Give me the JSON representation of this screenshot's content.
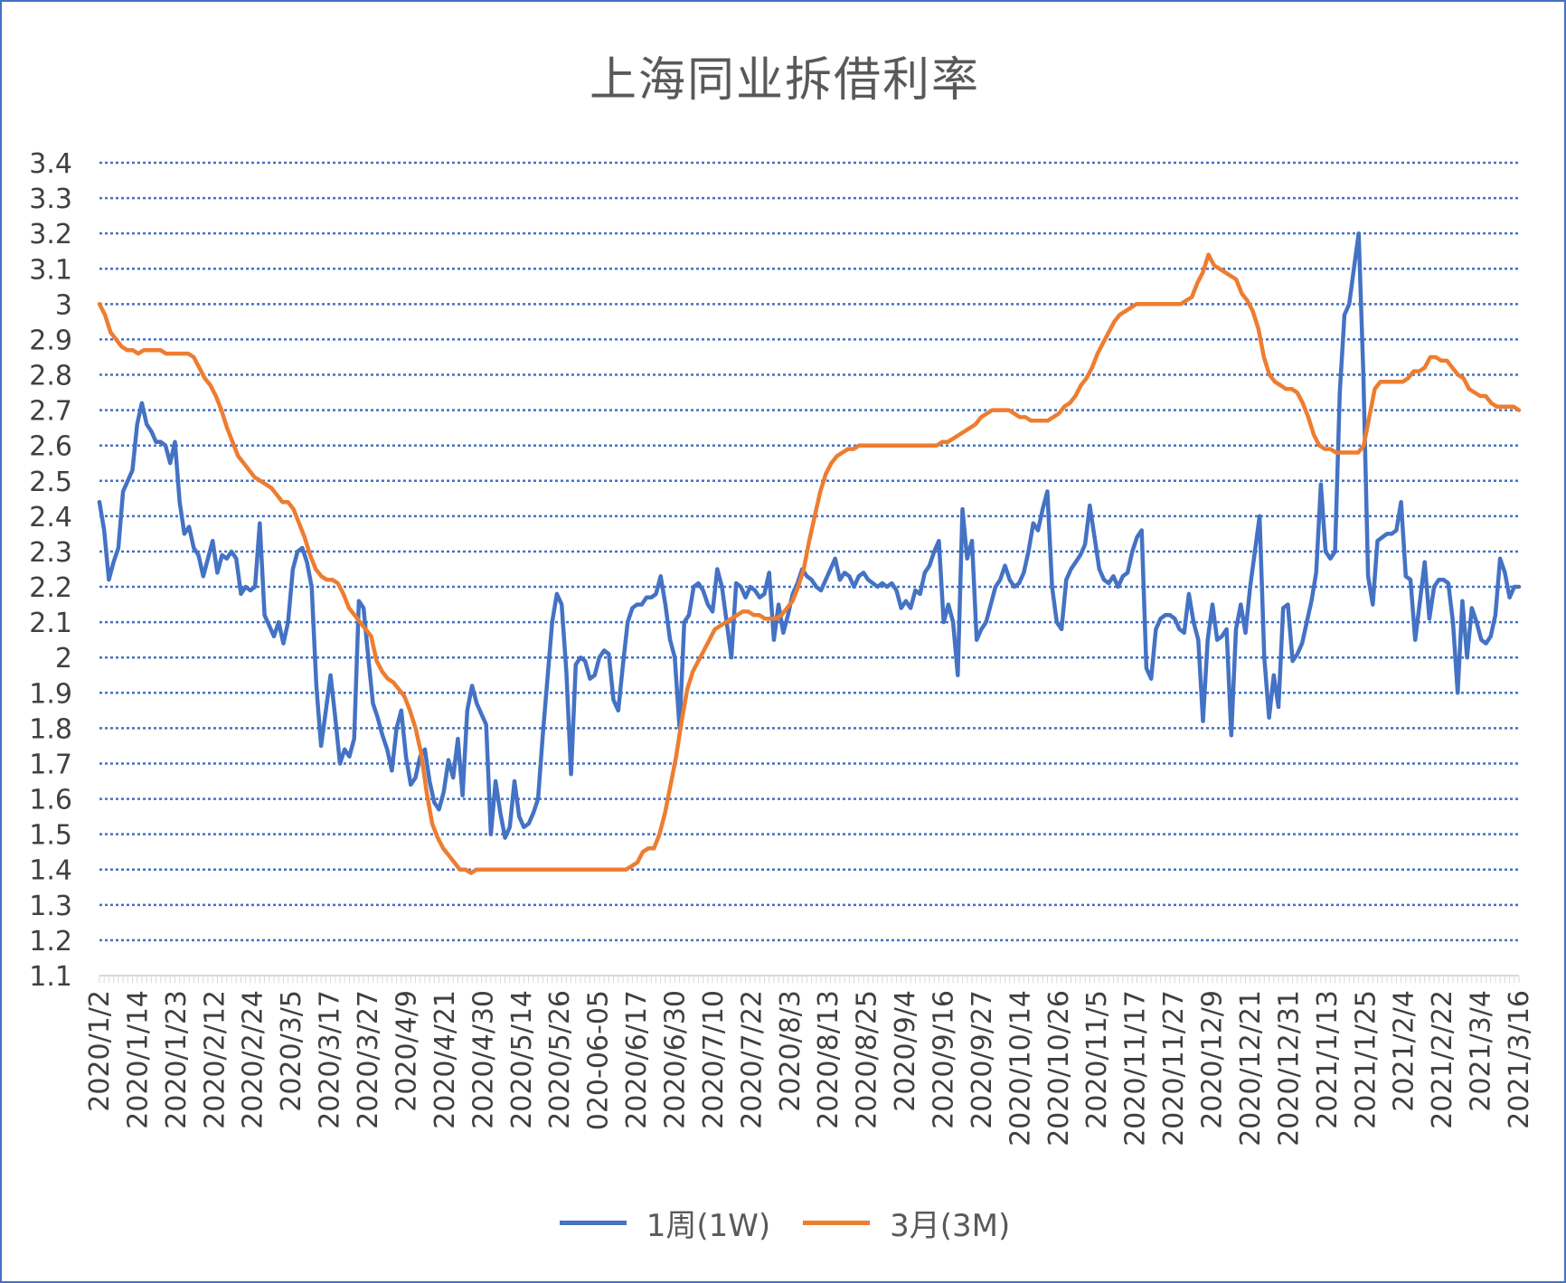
{
  "chart_data": {
    "type": "line",
    "title": "上海同业拆借利率",
    "xlabel": "",
    "ylabel": "",
    "ylim": [
      1.1,
      3.4
    ],
    "ytick_step": 0.1,
    "yticks": [
      "1.1",
      "1.2",
      "1.3",
      "1.4",
      "1.5",
      "1.6",
      "1.7",
      "1.8",
      "1.9",
      "2",
      "2.1",
      "2.2",
      "2.3",
      "2.4",
      "2.5",
      "2.6",
      "2.7",
      "2.8",
      "2.9",
      "3",
      "3.1",
      "3.2",
      "3.3",
      "3.4"
    ],
    "grid": true,
    "grid_color": "#4472c4",
    "legend_position": "bottom",
    "x_tick_labels": [
      "2020/1/2",
      "2020/1/14",
      "2020/1/23",
      "2020/2/12",
      "2020/2/24",
      "2020/3/5",
      "2020/3/17",
      "2020/3/27",
      "2020/4/9",
      "2020/4/21",
      "2020/4/30",
      "2020/5/14",
      "2020/5/26",
      "020-06-05",
      "2020/6/17",
      "2020/6/30",
      "2020/7/10",
      "2020/7/22",
      "2020/8/3",
      "2020/8/13",
      "2020/8/25",
      "2020/9/4",
      "2020/9/16",
      "2020/9/27",
      "2020/10/14",
      "2020/10/26",
      "2020/11/5",
      "2020/11/17",
      "2020/11/27",
      "2020/12/9",
      "2020/12/21",
      "2020/12/31",
      "2021/1/13",
      "2021/1/25",
      "2021/2/4",
      "2021/2/22",
      "2021/3/4",
      "2021/3/16"
    ],
    "series": [
      {
        "name": "1周(1W)",
        "color": "#4472c4",
        "values": [
          2.44,
          2.36,
          2.22,
          2.27,
          2.31,
          2.47,
          2.5,
          2.53,
          2.66,
          2.72,
          2.66,
          2.64,
          2.61,
          2.61,
          2.6,
          2.55,
          2.61,
          2.44,
          2.35,
          2.37,
          2.31,
          2.29,
          2.23,
          2.28,
          2.33,
          2.24,
          2.29,
          2.28,
          2.3,
          2.28,
          2.18,
          2.2,
          2.19,
          2.2,
          2.38,
          2.12,
          2.09,
          2.06,
          2.1,
          2.04,
          2.1,
          2.25,
          2.3,
          2.31,
          2.27,
          2.2,
          1.92,
          1.75,
          1.85,
          1.95,
          1.83,
          1.7,
          1.74,
          1.72,
          1.77,
          2.16,
          2.14,
          2.0,
          1.87,
          1.83,
          1.78,
          1.74,
          1.68,
          1.8,
          1.85,
          1.72,
          1.64,
          1.66,
          1.72,
          1.74,
          1.65,
          1.59,
          1.57,
          1.62,
          1.71,
          1.66,
          1.77,
          1.61,
          1.85,
          1.92,
          1.87,
          1.84,
          1.81,
          1.5,
          1.65,
          1.56,
          1.49,
          1.52,
          1.65,
          1.55,
          1.52,
          1.53,
          1.56,
          1.6,
          1.78,
          1.94,
          2.1,
          2.18,
          2.15,
          1.96,
          1.67,
          1.98,
          2.0,
          1.99,
          1.94,
          1.95,
          2.0,
          2.02,
          2.01,
          1.88,
          1.85,
          1.98,
          2.1,
          2.14,
          2.15,
          2.15,
          2.17,
          2.17,
          2.18,
          2.23,
          2.15,
          2.05,
          2.0,
          1.8,
          2.1,
          2.12,
          2.2,
          2.21,
          2.19,
          2.15,
          2.13,
          2.25,
          2.2,
          2.1,
          2.0,
          2.21,
          2.2,
          2.17,
          2.2,
          2.19,
          2.17,
          2.18,
          2.24,
          2.05,
          2.15,
          2.07,
          2.12,
          2.18,
          2.21,
          2.25,
          2.23,
          2.22,
          2.2,
          2.19,
          2.22,
          2.25,
          2.28,
          2.22,
          2.24,
          2.23,
          2.2,
          2.23,
          2.24,
          2.22,
          2.21,
          2.2,
          2.21,
          2.2,
          2.21,
          2.19,
          2.14,
          2.16,
          2.14,
          2.19,
          2.18,
          2.24,
          2.26,
          2.3,
          2.33,
          2.1,
          2.15,
          2.1,
          1.95,
          2.42,
          2.28,
          2.33,
          2.05,
          2.08,
          2.1,
          2.15,
          2.2,
          2.22,
          2.26,
          2.22,
          2.2,
          2.21,
          2.24,
          2.3,
          2.38,
          2.36,
          2.42,
          2.47,
          2.2,
          2.1,
          2.08,
          2.22,
          2.25,
          2.27,
          2.29,
          2.32,
          2.43,
          2.34,
          2.25,
          2.22,
          2.21,
          2.23,
          2.2,
          2.23,
          2.24,
          2.3,
          2.34,
          2.36,
          1.97,
          1.94,
          2.08,
          2.11,
          2.12,
          2.12,
          2.11,
          2.08,
          2.07,
          2.18,
          2.1,
          2.05,
          1.82,
          2.05,
          2.15,
          2.05,
          2.06,
          2.08,
          1.78,
          2.08,
          2.15,
          2.07,
          2.2,
          2.3,
          2.4,
          2.0,
          1.83,
          1.95,
          1.86,
          2.14,
          2.15,
          1.99,
          2.01,
          2.04,
          2.1,
          2.16,
          2.24,
          2.49,
          2.3,
          2.28,
          2.3,
          2.75,
          2.97,
          3.0,
          3.1,
          3.2,
          2.8,
          2.23,
          2.15,
          2.33,
          2.34,
          2.35,
          2.35,
          2.36,
          2.44,
          2.23,
          2.22,
          2.05,
          2.16,
          2.27,
          2.11,
          2.2,
          2.22,
          2.22,
          2.21,
          2.1,
          1.9,
          2.16,
          2.0,
          2.14,
          2.1,
          2.05,
          2.04,
          2.06,
          2.12,
          2.28,
          2.24,
          2.17,
          2.2,
          2.2
        ],
        "note_count": 0
      },
      {
        "name": "3月(3M)",
        "color": "#ed7d31",
        "values": [
          3.0,
          2.97,
          2.92,
          2.9,
          2.88,
          2.87,
          2.87,
          2.86,
          2.87,
          2.87,
          2.87,
          2.87,
          2.86,
          2.86,
          2.86,
          2.86,
          2.86,
          2.85,
          2.82,
          2.79,
          2.77,
          2.74,
          2.7,
          2.65,
          2.61,
          2.57,
          2.55,
          2.53,
          2.51,
          2.5,
          2.49,
          2.48,
          2.46,
          2.44,
          2.44,
          2.42,
          2.38,
          2.34,
          2.29,
          2.25,
          2.23,
          2.22,
          2.22,
          2.21,
          2.18,
          2.14,
          2.12,
          2.1,
          2.08,
          2.06,
          1.99,
          1.96,
          1.94,
          1.93,
          1.91,
          1.89,
          1.85,
          1.8,
          1.73,
          1.62,
          1.53,
          1.49,
          1.46,
          1.44,
          1.42,
          1.4,
          1.4,
          1.39,
          1.4,
          1.4,
          1.4,
          1.4,
          1.4,
          1.4,
          1.4,
          1.4,
          1.4,
          1.4,
          1.4,
          1.4,
          1.4,
          1.4,
          1.4,
          1.4,
          1.4,
          1.4,
          1.4,
          1.4,
          1.4,
          1.4,
          1.4,
          1.4,
          1.4,
          1.4,
          1.4,
          1.4,
          1.41,
          1.42,
          1.45,
          1.46,
          1.46,
          1.5,
          1.56,
          1.64,
          1.72,
          1.82,
          1.91,
          1.96,
          1.99,
          2.02,
          2.05,
          2.08,
          2.09,
          2.1,
          2.11,
          2.12,
          2.13,
          2.13,
          2.12,
          2.12,
          2.11,
          2.11,
          2.11,
          2.12,
          2.14,
          2.16,
          2.2,
          2.25,
          2.33,
          2.4,
          2.47,
          2.52,
          2.55,
          2.57,
          2.58,
          2.59,
          2.59,
          2.6,
          2.6,
          2.6,
          2.6,
          2.6,
          2.6,
          2.6,
          2.6,
          2.6,
          2.6,
          2.6,
          2.6,
          2.6,
          2.6,
          2.6,
          2.61,
          2.61,
          2.62,
          2.63,
          2.64,
          2.65,
          2.66,
          2.68,
          2.69,
          2.7,
          2.7,
          2.7,
          2.7,
          2.69,
          2.68,
          2.68,
          2.67,
          2.67,
          2.67,
          2.67,
          2.68,
          2.69,
          2.71,
          2.72,
          2.74,
          2.77,
          2.79,
          2.82,
          2.86,
          2.89,
          2.92,
          2.95,
          2.97,
          2.98,
          2.99,
          3.0,
          3.0,
          3.0,
          3.0,
          3.0,
          3.0,
          3.0,
          3.0,
          3.0,
          3.01,
          3.02,
          3.06,
          3.09,
          3.14,
          3.11,
          3.1,
          3.09,
          3.08,
          3.07,
          3.03,
          3.01,
          2.98,
          2.93,
          2.85,
          2.8,
          2.78,
          2.77,
          2.76,
          2.76,
          2.75,
          2.72,
          2.68,
          2.63,
          2.6,
          2.59,
          2.59,
          2.58,
          2.58,
          2.58,
          2.58,
          2.58,
          2.6,
          2.68,
          2.76,
          2.78,
          2.78,
          2.78,
          2.78,
          2.78,
          2.79,
          2.81,
          2.81,
          2.82,
          2.85,
          2.85,
          2.84,
          2.84,
          2.82,
          2.8,
          2.79,
          2.76,
          2.75,
          2.74,
          2.74,
          2.72,
          2.71,
          2.71,
          2.71,
          2.71,
          2.7
        ]
      }
    ]
  }
}
